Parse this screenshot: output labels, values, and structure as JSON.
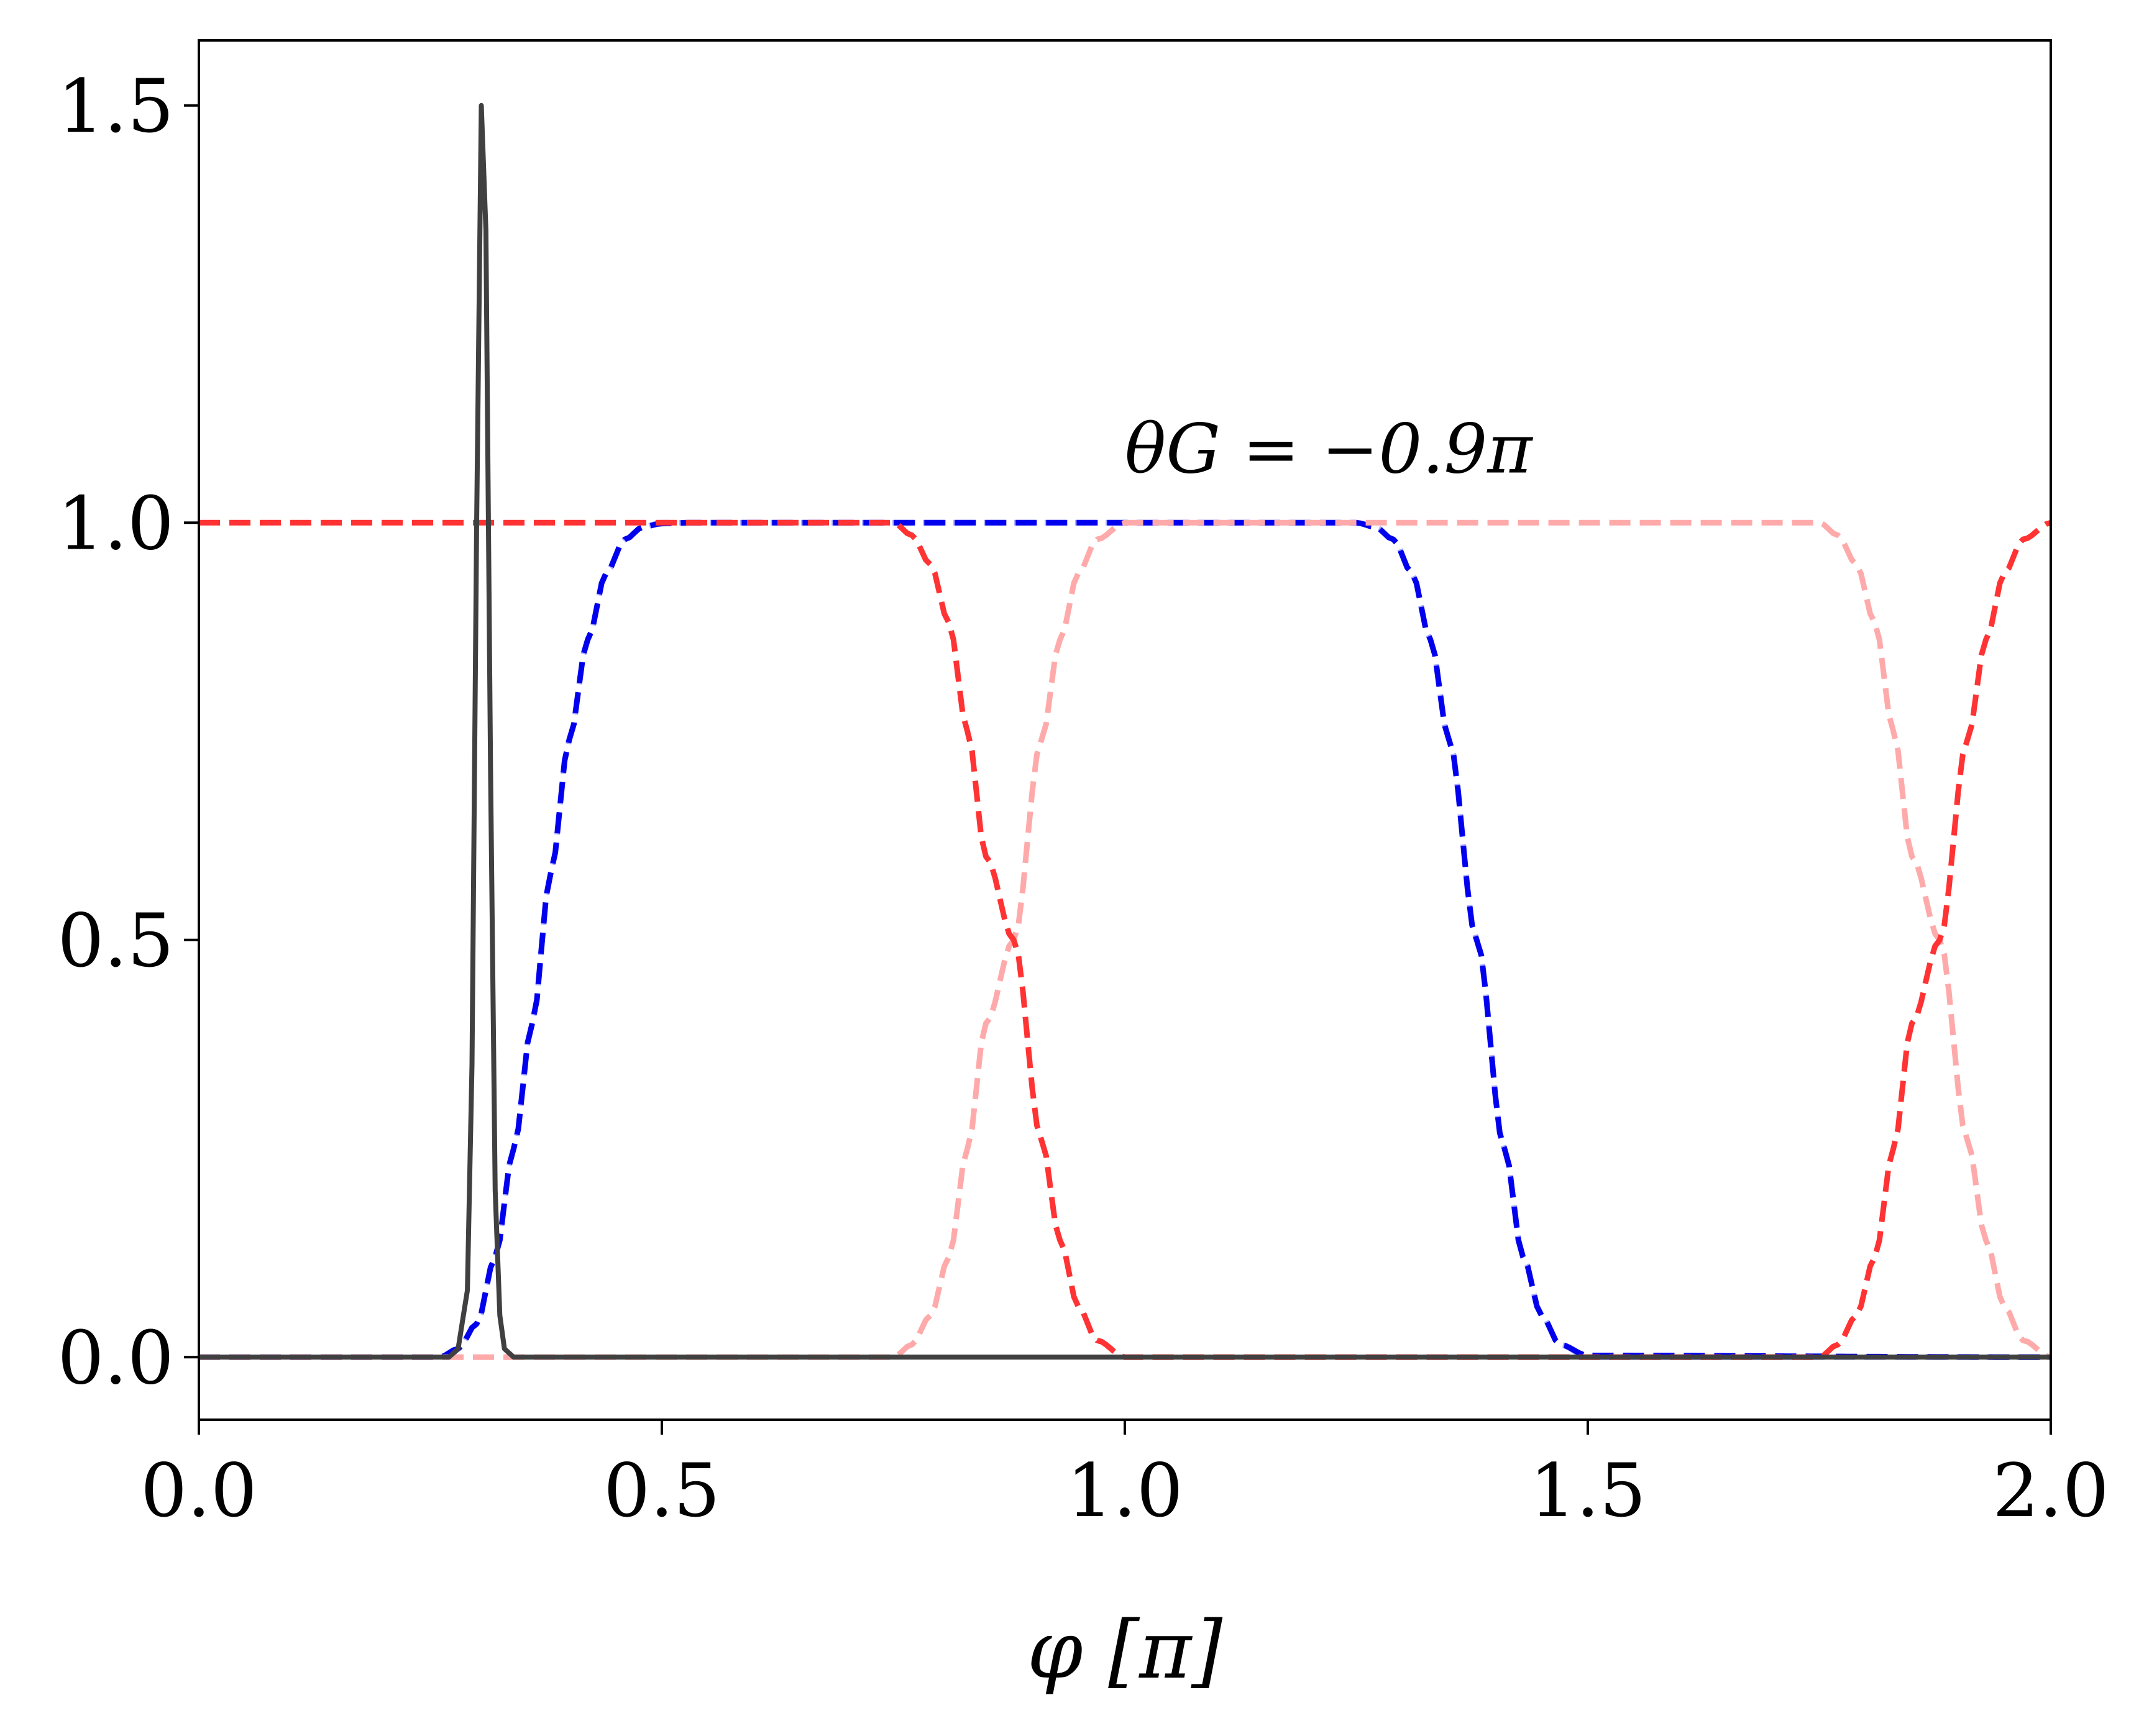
{
  "chart_data": {
    "type": "line",
    "xlabel": "φ [π]",
    "ylabel": "",
    "xlim": [
      0.0,
      2.0
    ],
    "ylim": [
      -0.075,
      1.578
    ],
    "xticks": [
      0.0,
      0.5,
      1.0,
      1.5,
      2.0
    ],
    "xtick_labels": [
      "0.0",
      "0.5",
      "1.0",
      "1.5",
      "2.0"
    ],
    "yticks": [
      0.0,
      0.5,
      1.0,
      1.5
    ],
    "ytick_labels": [
      "0.0",
      "0.5",
      "1.0",
      "1.5"
    ],
    "grid": false,
    "annotation": {
      "text": "θG = −0.9π",
      "x": 1.0,
      "y": 1.06
    },
    "series": [
      {
        "color": "#aaaaff",
        "style": "dashed",
        "x": [
          0.0,
          0.27,
          0.28,
          0.3,
          0.32,
          0.34,
          0.36,
          0.38,
          0.4,
          0.42,
          0.44,
          0.46,
          0.48,
          0.5,
          1.25,
          1.27,
          1.29,
          1.31,
          1.33,
          1.35,
          1.38,
          1.41,
          1.43,
          1.45,
          1.47,
          1.5,
          2.0
        ],
        "y": [
          0.0,
          0.0,
          0.01,
          0.04,
          0.12,
          0.25,
          0.4,
          0.58,
          0.74,
          0.86,
          0.94,
          0.98,
          0.995,
          1.0,
          1.0,
          0.995,
          0.98,
          0.94,
          0.86,
          0.74,
          0.5,
          0.25,
          0.12,
          0.05,
          0.015,
          0.0,
          0.0
        ]
      },
      {
        "color": "#0000ee",
        "style": "dashed",
        "x": [
          0.0,
          0.26,
          0.28,
          0.3,
          0.32,
          0.34,
          0.36,
          0.38,
          0.4,
          0.42,
          0.44,
          0.46,
          0.48,
          0.5,
          0.53,
          1.25,
          1.27,
          1.29,
          1.31,
          1.33,
          1.35,
          1.38,
          1.41,
          1.43,
          1.45,
          1.47,
          1.5,
          2.0
        ],
        "y": [
          0.0,
          0.0,
          0.01,
          0.04,
          0.12,
          0.25,
          0.4,
          0.58,
          0.74,
          0.86,
          0.94,
          0.98,
          0.995,
          0.999,
          1.0,
          1.0,
          0.995,
          0.98,
          0.94,
          0.86,
          0.74,
          0.5,
          0.25,
          0.12,
          0.05,
          0.015,
          0.002,
          0.0
        ]
      },
      {
        "color": "#ffaaaa",
        "style": "dashed",
        "x": [
          0.0,
          0.75,
          0.77,
          0.79,
          0.81,
          0.83,
          0.85,
          0.88,
          0.91,
          0.93,
          0.95,
          0.97,
          1.0,
          1.75,
          1.77,
          1.79,
          1.81,
          1.83,
          1.85,
          1.88,
          1.91,
          1.93,
          1.95,
          1.97,
          2.0
        ],
        "y": [
          0.0,
          0.0,
          0.015,
          0.05,
          0.12,
          0.25,
          0.4,
          0.5,
          0.74,
          0.86,
          0.94,
          0.98,
          1.0,
          1.0,
          0.985,
          0.95,
          0.88,
          0.75,
          0.6,
          0.5,
          0.26,
          0.14,
          0.06,
          0.02,
          0.0
        ]
      },
      {
        "color": "#ff3333",
        "style": "dashed",
        "x": [
          0.0,
          0.75,
          0.77,
          0.79,
          0.81,
          0.83,
          0.85,
          0.88,
          0.91,
          0.93,
          0.95,
          0.97,
          1.0,
          1.75,
          1.77,
          1.79,
          1.81,
          1.83,
          1.85,
          1.88,
          1.91,
          1.93,
          1.95,
          1.97,
          2.0
        ],
        "y": [
          1.0,
          1.0,
          0.985,
          0.95,
          0.88,
          0.75,
          0.6,
          0.5,
          0.26,
          0.14,
          0.06,
          0.02,
          0.0,
          0.0,
          0.015,
          0.05,
          0.12,
          0.25,
          0.4,
          0.5,
          0.74,
          0.86,
          0.94,
          0.98,
          1.0
        ]
      },
      {
        "color": "#404040",
        "style": "solid",
        "x": [
          0.0,
          0.27,
          0.28,
          0.29,
          0.295,
          0.3,
          0.305,
          0.31,
          0.315,
          0.32,
          0.325,
          0.33,
          0.34,
          2.0
        ],
        "y": [
          0.0,
          0.0,
          0.01,
          0.08,
          0.35,
          1.0,
          1.5,
          1.35,
          0.7,
          0.2,
          0.05,
          0.01,
          0.0,
          0.0
        ]
      }
    ]
  }
}
